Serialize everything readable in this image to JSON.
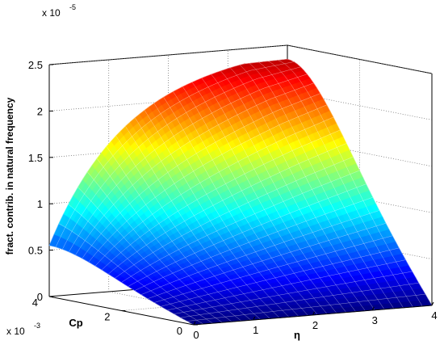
{
  "chart_data": {
    "type": "surface",
    "zlabel": "fract. contrib. in natural frequency",
    "xlabel": "η",
    "ylabel": "Cp",
    "x_ticks": [
      "0",
      "1",
      "2",
      "3",
      "4"
    ],
    "y_ticks": [
      "0",
      "2",
      "4"
    ],
    "z_ticks": [
      "0",
      "0.5",
      "1",
      "1.5",
      "2",
      "2.5"
    ],
    "z_exponent": {
      "base": "x 10",
      "power": "-5"
    },
    "y_exponent": {
      "base": "x 10",
      "power": "-3"
    },
    "xlim": [
      0,
      4
    ],
    "ylim": [
      0,
      0.004
    ],
    "zlim": [
      0,
      2.5e-05
    ],
    "grid": true,
    "colormap": "jet",
    "surface_points": [
      {
        "eta": 0,
        "cp": 0,
        "value": 0
      },
      {
        "eta": 4,
        "cp": 0,
        "value": 0
      },
      {
        "eta": 0,
        "cp": 0.004,
        "value": 5.5e-06
      },
      {
        "eta": 4,
        "cp": 0.004,
        "value": 2.35e-05
      }
    ]
  }
}
